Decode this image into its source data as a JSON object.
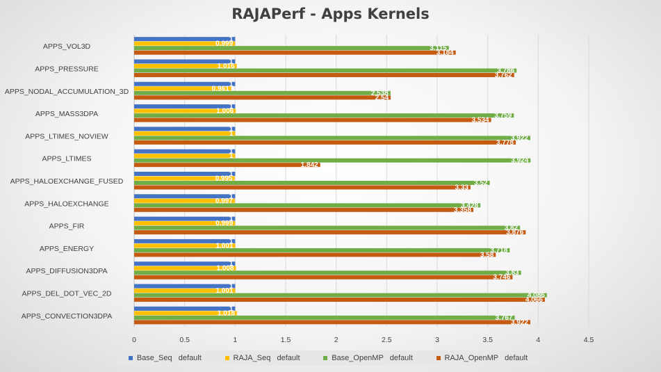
{
  "chart_data": {
    "type": "bar",
    "orientation": "horizontal",
    "title": "RAJAPerf - Apps Kernels",
    "categories": [
      "APPS_VOL3D",
      "APPS_PRESSURE",
      "APPS_NODAL_ACCUMULATION_3D",
      "APPS_MASS3DPA",
      "APPS_LTIMES_NOVIEW",
      "APPS_LTIMES",
      "APPS_HALOEXCHANGE_FUSED",
      "APPS_HALOEXCHANGE",
      "APPS_FIR",
      "APPS_ENERGY",
      "APPS_DIFFUSION3DPA",
      "APPS_DEL_DOT_VEC_2D",
      "APPS_CONVECTION3DPA"
    ],
    "series": [
      {
        "name": "Base_Seq   default",
        "color": "#4472c4",
        "values": [
          1,
          1,
          1,
          1,
          1,
          1,
          1,
          1,
          1,
          1,
          1,
          1,
          1
        ],
        "labels": [
          "1",
          "1",
          "1",
          "1",
          "1",
          "1",
          "1",
          "1",
          "1",
          "1",
          "1",
          "1",
          "1"
        ]
      },
      {
        "name": "RAJA_Seq   default",
        "color": "#ffc000",
        "values": [
          0.999,
          1.016,
          0.961,
          1.006,
          1,
          1,
          0.995,
          0.997,
          0.999,
          1.001,
          1.008,
          1.001,
          1.018
        ],
        "labels": [
          "0.999",
          "1.016",
          "0.961",
          "1.006",
          "1",
          "1",
          "0.995",
          "0.997",
          "0.999",
          "1.001",
          "1.008",
          "1.001",
          "1.018"
        ]
      },
      {
        "name": "Base_OpenMP   default",
        "color": "#70ad47",
        "values": [
          3.115,
          3.786,
          2.538,
          3.759,
          3.922,
          3.924,
          3.52,
          3.428,
          3.82,
          3.718,
          3.83,
          4.086,
          3.767
        ],
        "labels": [
          "3.115",
          "3.786",
          "2.538",
          "3.759",
          "3.922",
          "3.924",
          "3.52",
          "3.428",
          "3.82",
          "3.718",
          "3.83",
          "4.086",
          "3.767"
        ]
      },
      {
        "name": "RAJA_OpenMP   default",
        "color": "#c55a11",
        "values": [
          3.184,
          3.762,
          2.54,
          3.534,
          3.778,
          1.842,
          3.33,
          3.358,
          3.876,
          3.58,
          3.746,
          4.066,
          3.922
        ],
        "labels": [
          "3.184",
          "3.762",
          "2.54",
          "3.534",
          "3.778",
          "1.842",
          "3.33",
          "3.358",
          "3.876",
          "3.58",
          "3.746",
          "4.066",
          "3.922"
        ]
      }
    ],
    "xlim": [
      0,
      4.5
    ],
    "xticks": [
      "0",
      "0.5",
      "1",
      "1.5",
      "2",
      "2.5",
      "3",
      "3.5",
      "4",
      "4.5"
    ],
    "grid": true,
    "legend_position": "bottom",
    "xlabel": "",
    "ylabel": ""
  }
}
